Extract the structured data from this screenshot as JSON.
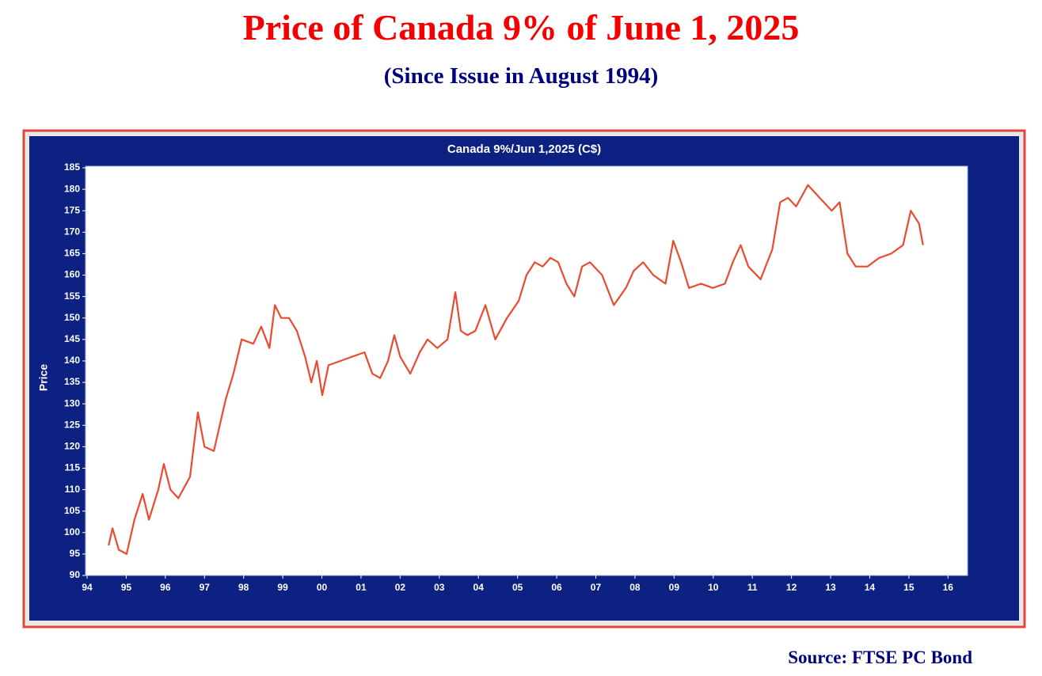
{
  "header": {
    "title": "Price of Canada 9% of June 1, 2025",
    "subtitle": "(Since Issue in August 1994)"
  },
  "source": "Source: FTSE PC Bond",
  "chart_data": {
    "type": "line",
    "title": "Canada 9%/Jun 1,2025 (C$)",
    "y_label": "Price",
    "x": [
      1994.55,
      1994.65,
      1994.81,
      1995.01,
      1995.21,
      1995.42,
      1995.58,
      1995.82,
      1995.96,
      1996.13,
      1996.33,
      1996.63,
      1996.83,
      1997.0,
      1997.24,
      1997.54,
      1997.74,
      1997.95,
      1998.25,
      1998.45,
      1998.66,
      1998.8,
      1998.96,
      1999.16,
      1999.36,
      1999.57,
      1999.73,
      1999.87,
      2000.01,
      2000.17,
      2000.48,
      2000.78,
      2001.09,
      2001.29,
      2001.49,
      2001.69,
      2001.85,
      2002.0,
      2002.26,
      2002.5,
      2002.7,
      2002.95,
      2003.21,
      2003.41,
      2003.55,
      2003.72,
      2003.92,
      2004.18,
      2004.43,
      2004.73,
      2005.03,
      2005.23,
      2005.44,
      2005.64,
      2005.84,
      2006.04,
      2006.25,
      2006.45,
      2006.65,
      2006.85,
      2007.16,
      2007.46,
      2007.77,
      2007.97,
      2008.21,
      2008.47,
      2008.78,
      2008.98,
      2009.18,
      2009.38,
      2009.69,
      2009.99,
      2010.3,
      2010.5,
      2010.7,
      2010.9,
      2011.21,
      2011.51,
      2011.71,
      2011.91,
      2012.12,
      2012.42,
      2012.72,
      2013.03,
      2013.23,
      2013.43,
      2013.64,
      2013.94,
      2014.24,
      2014.55,
      2014.85,
      2015.05,
      2015.26,
      2015.36
    ],
    "series": [
      {
        "name": "Price",
        "color": "#ea4a2e",
        "values": [
          97,
          101,
          96,
          95,
          103,
          109,
          103,
          110,
          116,
          110,
          108,
          113,
          128,
          120,
          119,
          131,
          137,
          145,
          144,
          148,
          143,
          153,
          150,
          150,
          147,
          141,
          135,
          140,
          132,
          139,
          140,
          141,
          142,
          137,
          136,
          140,
          146,
          141,
          137,
          142,
          145,
          143,
          145,
          156,
          147,
          146,
          147,
          153,
          145,
          150,
          154,
          160,
          163,
          162,
          164,
          163,
          158,
          155,
          162,
          163,
          160,
          153,
          157,
          161,
          163,
          160,
          158,
          168,
          163,
          157,
          158,
          157,
          158,
          163,
          167,
          162,
          159,
          166,
          177,
          178,
          176,
          181,
          178,
          175,
          177,
          165,
          162,
          162,
          164,
          165,
          167,
          175,
          172,
          167
        ]
      }
    ],
    "xlim": [
      1994,
      2016.5
    ],
    "xticks": [
      {
        "value": 1994,
        "label": "94"
      },
      {
        "value": 1995,
        "label": "95"
      },
      {
        "value": 1996,
        "label": "96"
      },
      {
        "value": 1997,
        "label": "97"
      },
      {
        "value": 1998,
        "label": "98"
      },
      {
        "value": 1999,
        "label": "99"
      },
      {
        "value": 2000,
        "label": "00"
      },
      {
        "value": 2001,
        "label": "01"
      },
      {
        "value": 2002,
        "label": "02"
      },
      {
        "value": 2003,
        "label": "03"
      },
      {
        "value": 2004,
        "label": "04"
      },
      {
        "value": 2005,
        "label": "05"
      },
      {
        "value": 2006,
        "label": "06"
      },
      {
        "value": 2007,
        "label": "07"
      },
      {
        "value": 2008,
        "label": "08"
      },
      {
        "value": 2009,
        "label": "09"
      },
      {
        "value": 2010,
        "label": "10"
      },
      {
        "value": 2011,
        "label": "11"
      },
      {
        "value": 2012,
        "label": "12"
      },
      {
        "value": 2013,
        "label": "13"
      },
      {
        "value": 2014,
        "label": "14"
      },
      {
        "value": 2015,
        "label": "15"
      },
      {
        "value": 2016,
        "label": "16"
      }
    ],
    "ylim": [
      90,
      185
    ],
    "yticks": [
      90,
      95,
      100,
      105,
      110,
      115,
      120,
      125,
      130,
      135,
      140,
      145,
      150,
      155,
      160,
      165,
      170,
      175,
      180,
      185
    ],
    "grid": false
  }
}
